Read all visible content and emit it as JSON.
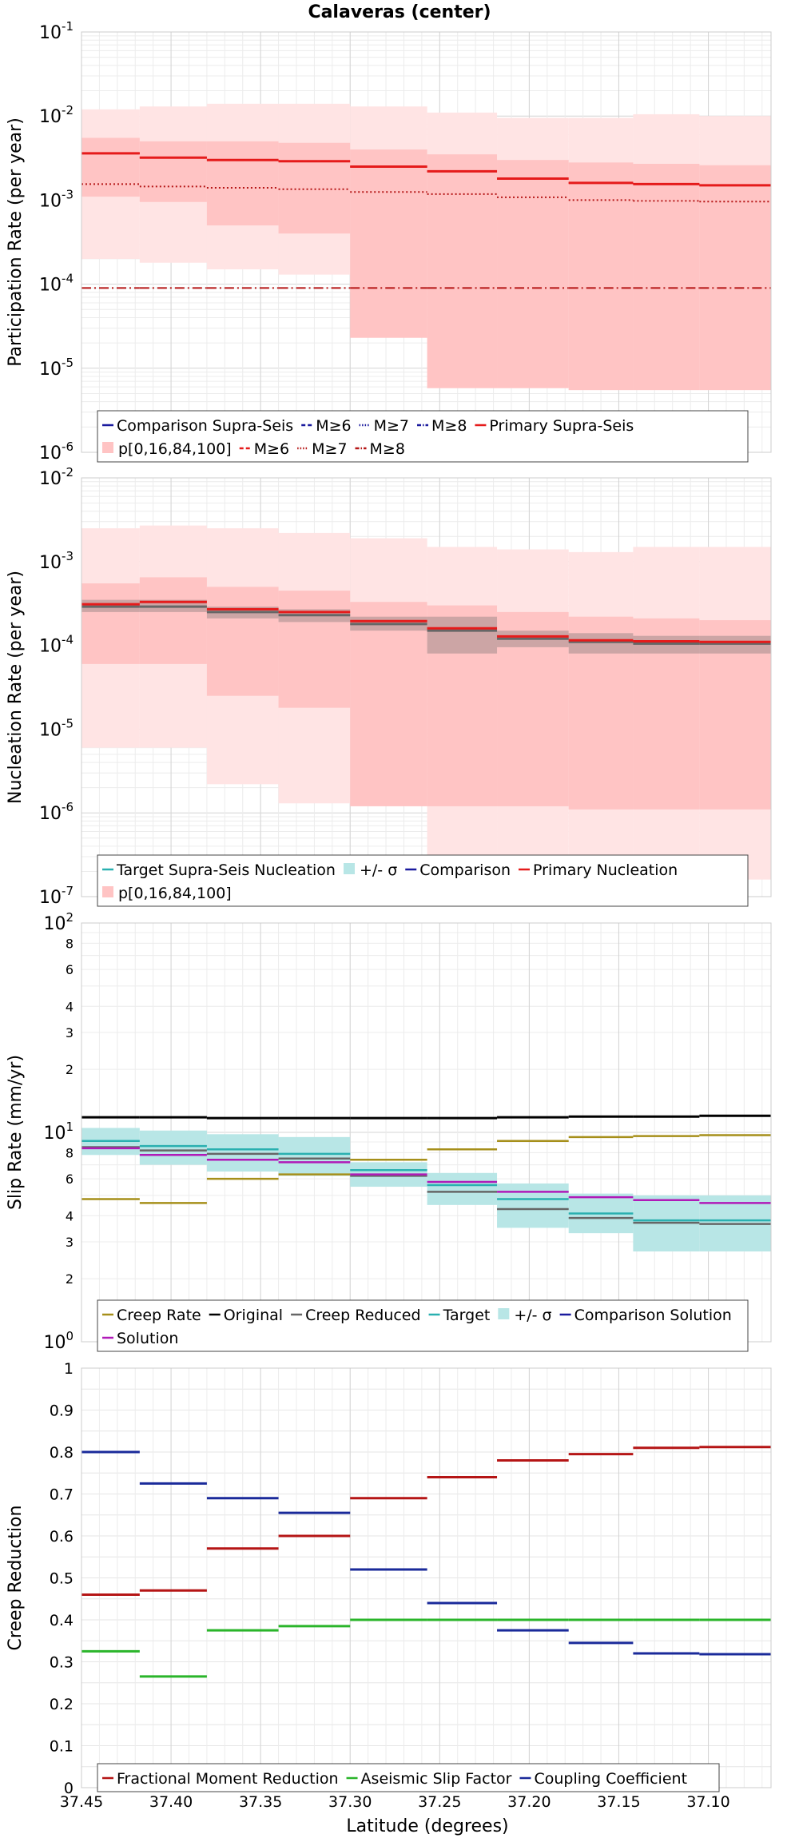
{
  "title": "Calaveras (center)",
  "xlabel": "Latitude (degrees)",
  "x_ticks": [
    "37.45",
    "37.40",
    "37.35",
    "37.30",
    "37.25",
    "37.20",
    "37.15",
    "37.10"
  ],
  "x_tick_values": [
    37.45,
    37.4,
    37.35,
    37.3,
    37.25,
    37.2,
    37.15,
    37.1
  ],
  "xlim": [
    37.45,
    37.065
  ],
  "bins": [
    [
      37.45,
      37.4175
    ],
    [
      37.4175,
      37.38
    ],
    [
      37.38,
      37.34
    ],
    [
      37.34,
      37.3
    ],
    [
      37.3,
      37.257
    ],
    [
      37.257,
      37.218
    ],
    [
      37.218,
      37.178
    ],
    [
      37.178,
      37.142
    ],
    [
      37.142,
      37.105
    ],
    [
      37.105,
      37.065
    ]
  ],
  "colors": {
    "red": "#e51b1b",
    "dark_red": "#b51515",
    "navy": "#1a1a9e",
    "teal": "#2ab0b0",
    "band": "#b8e6e6",
    "olive": "#a68f1a",
    "black": "#000000",
    "gray": "#666666",
    "purple": "#b01ab8",
    "dark_blue": "#1a2a9a",
    "green": "#2ab52a",
    "pink_outer": "#ffe4e4",
    "pink_inner": "#ffc4c4"
  },
  "chart_data": [
    {
      "type": "line",
      "name": "participation",
      "ylabel": "Participation Rate (per year)",
      "yscale": "log",
      "ylim": [
        1e-06,
        0.1
      ],
      "y_ticks": [
        {
          "base": "10",
          "exp": "-6"
        },
        {
          "base": "10",
          "exp": "-5"
        },
        {
          "base": "10",
          "exp": "-4"
        },
        {
          "base": "10",
          "exp": "-3"
        },
        {
          "base": "10",
          "exp": "-2"
        },
        {
          "base": "10",
          "exp": "-1"
        }
      ],
      "bands": [
        {
          "name": "p[0,100]",
          "color": "pink_outer",
          "low": [
            0.0002,
            0.00018,
            0.00015,
            0.00013,
            8e-05,
            5.8e-06,
            5.8e-06,
            5.5e-06,
            5.5e-06,
            5.5e-06
          ],
          "high": [
            0.012,
            0.013,
            0.014,
            0.014,
            0.013,
            0.011,
            0.0095,
            0.0095,
            0.0105,
            0.01
          ]
        },
        {
          "name": "p[16,84]",
          "color": "pink_inner",
          "low": [
            0.0011,
            0.00095,
            0.0005,
            0.0004,
            2.3e-05,
            5.8e-06,
            5.8e-06,
            5.5e-06,
            5.5e-06,
            5.5e-06
          ],
          "high": [
            0.0055,
            0.005,
            0.005,
            0.0048,
            0.004,
            0.0035,
            0.003,
            0.0028,
            0.0027,
            0.0026
          ]
        }
      ],
      "series": [
        {
          "name": "Primary Supra-Seis",
          "color": "red",
          "dash": "solid",
          "width": 3,
          "values": [
            0.0036,
            0.0032,
            0.003,
            0.0029,
            0.0025,
            0.0022,
            0.0018,
            0.0016,
            0.00155,
            0.0015
          ]
        },
        {
          "name": "M≥6",
          "color": "red",
          "dash": "dash",
          "width": 2,
          "values": [
            0.0036,
            0.0032,
            0.003,
            0.0029,
            0.0025,
            0.0022,
            0.0018,
            0.0016,
            0.00155,
            0.0015
          ]
        },
        {
          "name": "M≥7",
          "color": "dark_red",
          "dash": "dot",
          "width": 2,
          "values": [
            0.00155,
            0.00145,
            0.0014,
            0.00135,
            0.00125,
            0.00118,
            0.00108,
            0.001,
            0.00098,
            0.00096
          ]
        },
        {
          "name": "M≥8",
          "color": "dark_red",
          "dash": "dashdot",
          "width": 2,
          "values": [
            9e-05,
            9e-05,
            9e-05,
            9e-05,
            9e-05,
            9e-05,
            9e-05,
            9e-05,
            9e-05,
            9e-05
          ]
        }
      ],
      "legend": {
        "rows": [
          [
            {
              "label": "Comparison Supra-Seis",
              "color": "navy",
              "dash": "solid"
            },
            {
              "label": "M≥6",
              "color": "navy",
              "dash": "dash"
            },
            {
              "label": "M≥7",
              "color": "navy",
              "dash": "dot"
            },
            {
              "label": "M≥8",
              "color": "navy",
              "dash": "dashdot"
            },
            {
              "label": "Primary Supra-Seis",
              "color": "red",
              "dash": "solid"
            }
          ],
          [
            {
              "label": "p[0,16,84,100]",
              "color": "pink_inner",
              "dash": "patch"
            },
            {
              "label": "M≥6",
              "color": "red",
              "dash": "dash"
            },
            {
              "label": "M≥7",
              "color": "dark_red",
              "dash": "dot"
            },
            {
              "label": "M≥8",
              "color": "dark_red",
              "dash": "dashdot"
            }
          ]
        ]
      }
    },
    {
      "type": "line",
      "name": "nucleation",
      "ylabel": "Nucleation Rate (per year)",
      "yscale": "log",
      "ylim": [
        1e-07,
        0.01
      ],
      "y_ticks": [
        {
          "base": "10",
          "exp": "-7"
        },
        {
          "base": "10",
          "exp": "-6"
        },
        {
          "base": "10",
          "exp": "-5"
        },
        {
          "base": "10",
          "exp": "-4"
        },
        {
          "base": "10",
          "exp": "-3"
        },
        {
          "base": "10",
          "exp": "-2"
        }
      ],
      "bands": [
        {
          "name": "p[0,100]",
          "color": "pink_outer",
          "low": [
            6e-06,
            6e-06,
            2.2e-06,
            1.3e-06,
            1.2e-06,
            1.7e-07,
            1.7e-07,
            1.6e-07,
            1.6e-07,
            1.6e-07
          ],
          "high": [
            0.0025,
            0.0027,
            0.0025,
            0.0022,
            0.0019,
            0.0015,
            0.0014,
            0.0013,
            0.0015,
            0.0015
          ]
        },
        {
          "name": "p[16,84]",
          "color": "pink_inner",
          "low": [
            6e-05,
            6e-05,
            2.5e-05,
            1.8e-05,
            1.2e-06,
            1.2e-06,
            1.2e-06,
            1.1e-06,
            1.1e-06,
            1.1e-06
          ],
          "high": [
            0.00055,
            0.00065,
            0.0005,
            0.00045,
            0.00033,
            0.0003,
            0.00025,
            0.00022,
            0.00021,
            0.0002
          ]
        },
        {
          "name": "+/- σ",
          "color": "gray_band",
          "low": [
            0.00025,
            0.00025,
            0.00021,
            0.00019,
            0.00015,
            8e-05,
            9.5e-05,
            8e-05,
            8e-05,
            8e-05
          ],
          "high": [
            0.00035,
            0.00035,
            0.00029,
            0.00027,
            0.00022,
            0.00022,
            0.00015,
            0.00014,
            0.00013,
            0.00013
          ]
        }
      ],
      "series": [
        {
          "name": "Target Supra-Seis Nucleation",
          "color": "gray",
          "dash": "solid",
          "width": 3,
          "values": [
            0.00029,
            0.00029,
            0.00025,
            0.00023,
            0.00018,
            0.00015,
            0.00012,
            0.00011,
            0.000105,
            0.000105
          ]
        },
        {
          "name": "Primary Nucleation",
          "color": "red",
          "dash": "solid",
          "width": 3,
          "values": [
            0.00031,
            0.00033,
            0.00027,
            0.00025,
            0.000195,
            0.00016,
            0.000128,
            0.000115,
            0.000112,
            0.00011
          ]
        }
      ],
      "legend": {
        "rows": [
          [
            {
              "label": "Target Supra-Seis Nucleation",
              "color": "teal",
              "dash": "solid"
            },
            {
              "label": "+/- σ",
              "color": "band",
              "dash": "patch"
            },
            {
              "label": "Comparison",
              "color": "navy",
              "dash": "solid"
            },
            {
              "label": "Primary Nucleation",
              "color": "red",
              "dash": "solid"
            }
          ],
          [
            {
              "label": "p[0,16,84,100]",
              "color": "pink_inner",
              "dash": "patch"
            }
          ]
        ]
      }
    },
    {
      "type": "line",
      "name": "slip",
      "ylabel": "Slip Rate (mm/yr)",
      "yscale": "log",
      "ylim": [
        1,
        100
      ],
      "y_ticks": [
        {
          "base": "10",
          "exp": "0"
        },
        {
          "base": "10",
          "exp": "1"
        },
        {
          "base": "10",
          "exp": "2"
        }
      ],
      "y_minor_ticks": [
        2,
        3,
        4,
        6,
        8,
        20,
        30,
        40,
        60,
        80
      ],
      "y_minor_labels": [
        "2",
        "3",
        "4",
        "6",
        "8",
        "2",
        "3",
        "4",
        "6",
        "8"
      ],
      "bands": [
        {
          "name": "+/- σ",
          "color": "band",
          "low": [
            7.8,
            7.0,
            6.5,
            6.2,
            5.5,
            4.5,
            3.5,
            3.3,
            2.7,
            2.7
          ],
          "high": [
            10.5,
            10.2,
            9.8,
            9.5,
            7.2,
            6.4,
            5.7,
            5.1,
            5.0,
            5.0
          ]
        }
      ],
      "series": [
        {
          "name": "Original",
          "color": "black",
          "dash": "solid",
          "width": 3,
          "values": [
            11.8,
            11.8,
            11.7,
            11.7,
            11.7,
            11.7,
            11.8,
            11.9,
            11.9,
            12.0
          ]
        },
        {
          "name": "Creep Rate",
          "color": "olive",
          "dash": "solid",
          "width": 2.5,
          "values": [
            4.8,
            4.6,
            6.0,
            6.3,
            7.4,
            8.3,
            9.1,
            9.5,
            9.6,
            9.7
          ]
        },
        {
          "name": "Target",
          "color": "teal",
          "dash": "solid",
          "width": 2.5,
          "values": [
            9.1,
            8.6,
            8.3,
            7.9,
            6.6,
            5.6,
            4.8,
            4.1,
            3.8,
            3.8
          ]
        },
        {
          "name": "Creep Reduced",
          "color": "gray",
          "dash": "solid",
          "width": 2.5,
          "values": [
            8.5,
            8.2,
            7.9,
            7.5,
            6.2,
            5.2,
            4.3,
            3.9,
            3.7,
            3.65
          ]
        },
        {
          "name": "Solution",
          "color": "purple",
          "dash": "solid",
          "width": 2.5,
          "values": [
            8.4,
            7.8,
            7.4,
            7.2,
            6.3,
            5.8,
            5.2,
            4.9,
            4.75,
            4.6
          ]
        }
      ],
      "legend": {
        "rows": [
          [
            {
              "label": "Creep Rate",
              "color": "olive",
              "dash": "solid"
            },
            {
              "label": "Original",
              "color": "black",
              "dash": "solid"
            },
            {
              "label": "Creep Reduced",
              "color": "gray",
              "dash": "solid"
            },
            {
              "label": "Target",
              "color": "teal",
              "dash": "solid"
            },
            {
              "label": "+/- σ",
              "color": "band",
              "dash": "patch"
            },
            {
              "label": "Comparison Solution",
              "color": "navy",
              "dash": "solid"
            }
          ],
          [
            {
              "label": "Solution",
              "color": "purple",
              "dash": "solid"
            }
          ]
        ]
      }
    },
    {
      "type": "line",
      "name": "creep",
      "ylabel": "Creep Reduction",
      "yscale": "linear",
      "ylim": [
        0,
        1
      ],
      "y_ticks_linear": [
        "0",
        "0.1",
        "0.2",
        "0.3",
        "0.4",
        "0.5",
        "0.6",
        "0.7",
        "0.8",
        "0.9",
        "1"
      ],
      "series": [
        {
          "name": "Fractional Moment Reduction",
          "color": "dark_red",
          "dash": "solid",
          "width": 3,
          "values": [
            0.46,
            0.47,
            0.57,
            0.6,
            0.69,
            0.74,
            0.78,
            0.795,
            0.81,
            0.812
          ]
        },
        {
          "name": "Aseismic Slip Factor",
          "color": "green",
          "dash": "solid",
          "width": 3,
          "values": [
            0.325,
            0.265,
            0.375,
            0.385,
            0.4,
            0.4,
            0.4,
            0.4,
            0.4,
            0.4
          ]
        },
        {
          "name": "Coupling Coefficient",
          "color": "dark_blue",
          "dash": "solid",
          "width": 3,
          "values": [
            0.8,
            0.725,
            0.69,
            0.655,
            0.52,
            0.44,
            0.375,
            0.345,
            0.32,
            0.318
          ]
        }
      ],
      "legend": {
        "rows": [
          [
            {
              "label": "Fractional Moment Reduction",
              "color": "dark_red",
              "dash": "solid"
            },
            {
              "label": "Aseismic Slip Factor",
              "color": "green",
              "dash": "solid"
            },
            {
              "label": "Coupling Coefficient",
              "color": "dark_blue",
              "dash": "solid"
            }
          ]
        ]
      }
    }
  ]
}
